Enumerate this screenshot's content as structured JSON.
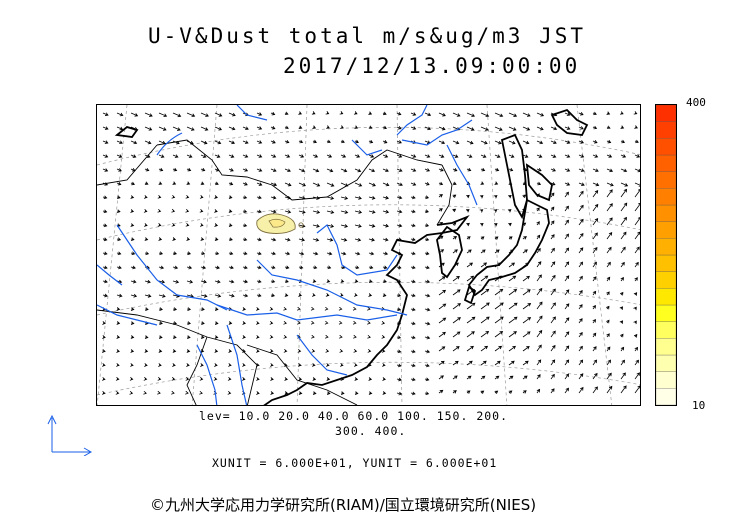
{
  "title": {
    "line1": "U-V&Dust total m/s&ug/m3 JST",
    "line2": "2017/12/13.09:00:00"
  },
  "colorbar": {
    "max_label": "400",
    "min_label": "10",
    "colors": [
      "#ffffe8",
      "#ffffd0",
      "#ffffb0",
      "#ffff90",
      "#ffff60",
      "#ffff20",
      "#ffe800",
      "#ffd000",
      "#ffc000",
      "#ffb000",
      "#ffa000",
      "#ff9000",
      "#ff8000",
      "#ff7000",
      "#ff6000",
      "#ff5000",
      "#ff4000",
      "#ff3000"
    ]
  },
  "levels": {
    "line1": "lev= 10.0 20.0 40.0 60.0 100. 150. 200.",
    "line2": "300. 400."
  },
  "units": "XUNIT = 6.000E+01, YUNIT = 6.000E+01",
  "credit": "©九州大学応用力学研究所(RIAM)/国立環境研究所(NIES)",
  "colors": {
    "coast": "#000000",
    "rivers": "#1a5fe8",
    "dust_fill": "#f7f0a8",
    "dust_edge": "#807040",
    "grid": "#888888"
  }
}
